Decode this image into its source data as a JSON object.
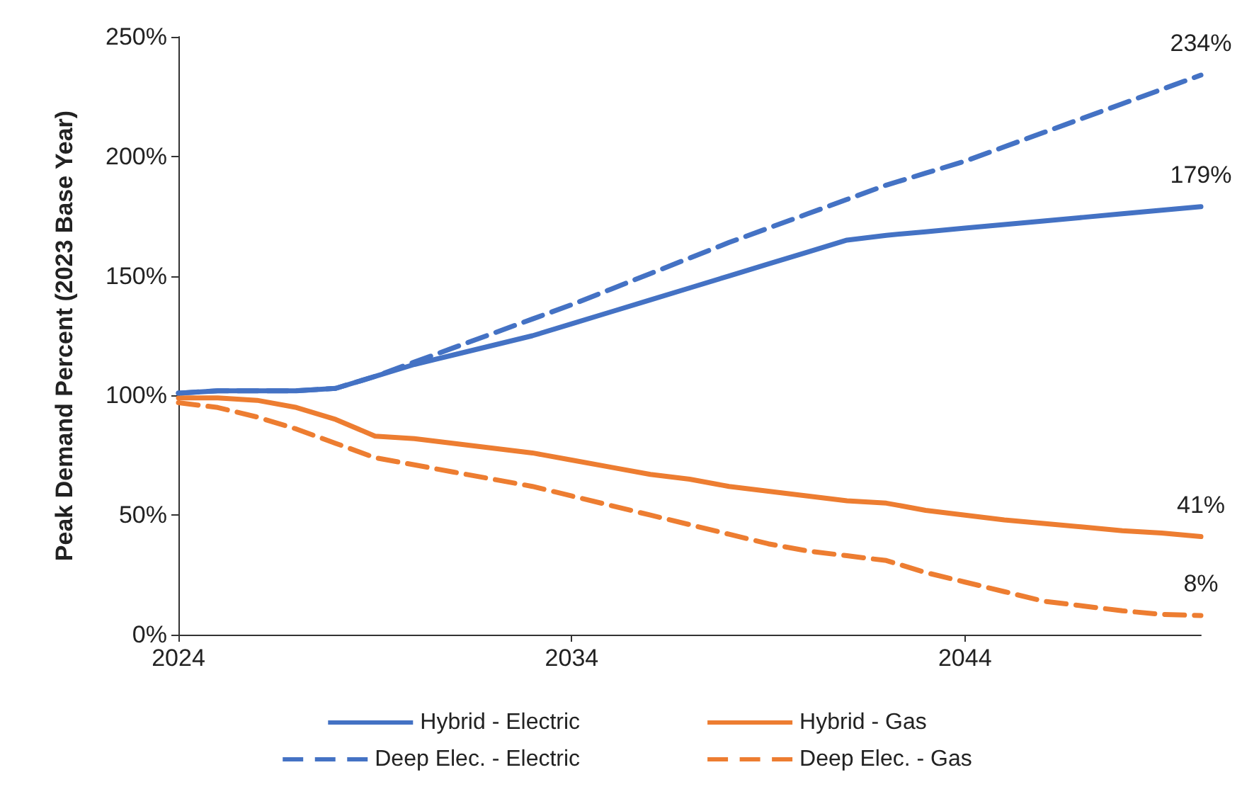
{
  "chart_data": {
    "type": "line",
    "ylabel": "Peak Demand Percent (2023 Base Year)",
    "x": [
      2024,
      2025,
      2026,
      2027,
      2028,
      2029,
      2030,
      2031,
      2032,
      2033,
      2034,
      2035,
      2036,
      2037,
      2038,
      2039,
      2040,
      2041,
      2042,
      2043,
      2044,
      2045,
      2046,
      2047,
      2048,
      2049,
      2050
    ],
    "series": [
      {
        "name": "Hybrid - Electric",
        "color": "#4472c4",
        "line_style": "solid",
        "values": [
          101,
          102,
          102,
          102,
          103,
          108,
          113,
          117,
          121,
          125,
          130,
          135,
          140,
          145,
          150,
          155,
          160,
          165,
          167,
          168.5,
          170,
          171.5,
          173,
          174.5,
          176,
          177.5,
          179
        ],
        "value_labels": [
          null,
          null,
          null,
          null,
          null,
          null,
          null,
          null,
          null,
          null,
          null,
          null,
          null,
          null,
          null,
          null,
          null,
          null,
          null,
          null,
          null,
          null,
          null,
          null,
          null,
          null,
          "179%"
        ]
      },
      {
        "name": "Hybrid - Gas",
        "color": "#ed7d31",
        "line_style": "solid",
        "values": [
          99,
          99,
          98,
          95,
          90,
          83,
          82,
          80,
          78,
          76,
          73,
          70,
          67,
          65,
          62,
          60,
          58,
          56,
          55,
          52,
          50,
          48,
          46.5,
          45,
          43.5,
          42.5,
          41
        ],
        "value_labels": [
          null,
          null,
          null,
          null,
          null,
          null,
          null,
          null,
          null,
          null,
          null,
          null,
          null,
          null,
          null,
          null,
          null,
          null,
          null,
          null,
          null,
          null,
          null,
          null,
          null,
          null,
          "41%"
        ]
      },
      {
        "name": "Deep Elec. - Electric",
        "color": "#4472c4",
        "line_style": "dashed",
        "values": [
          101,
          102,
          102,
          102,
          103,
          108,
          114,
          120,
          126,
          132,
          138,
          144.5,
          151,
          157.5,
          164,
          170,
          176,
          182,
          188,
          193,
          198,
          204,
          210,
          216,
          222,
          228,
          234
        ],
        "value_labels": [
          null,
          null,
          null,
          null,
          null,
          null,
          null,
          null,
          null,
          null,
          null,
          null,
          null,
          null,
          null,
          null,
          null,
          null,
          null,
          null,
          null,
          null,
          null,
          null,
          null,
          null,
          "234%"
        ]
      },
      {
        "name": "Deep Elec. - Gas",
        "color": "#ed7d31",
        "line_style": "dashed",
        "values": [
          97,
          95,
          91,
          86,
          80,
          74,
          71,
          68,
          65,
          62,
          58,
          54,
          50,
          46,
          42,
          38,
          35,
          33,
          31,
          26,
          22,
          18,
          14,
          12,
          10,
          8.5,
          8
        ],
        "value_labels": [
          null,
          null,
          null,
          null,
          null,
          null,
          null,
          null,
          null,
          null,
          null,
          null,
          null,
          null,
          null,
          null,
          null,
          null,
          null,
          null,
          null,
          null,
          null,
          null,
          null,
          null,
          "8%"
        ]
      }
    ],
    "xlim": [
      2024,
      2050
    ],
    "xticks": [
      2024,
      2034,
      2044
    ],
    "ylim": [
      0,
      250
    ],
    "yticks": [
      {
        "value": 0,
        "label": "0%"
      },
      {
        "value": 50,
        "label": "50%"
      },
      {
        "value": 100,
        "label": "100%"
      },
      {
        "value": 150,
        "label": "150%"
      },
      {
        "value": 200,
        "label": "200%"
      },
      {
        "value": 250,
        "label": "250%"
      }
    ],
    "grid": false,
    "legend": "bottom"
  }
}
